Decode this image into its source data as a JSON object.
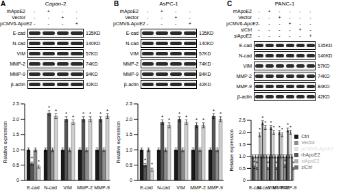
{
  "chart_data": [
    {
      "type": "bar",
      "y_label": "Relative expression",
      "categories": [
        "E-cad",
        "N-cad",
        "VIM",
        "MMP-2",
        "MMP-9"
      ],
      "ylim": [
        0,
        2.5
      ],
      "yticks": [
        0,
        0.5,
        {
          "value": 1,
          "label": "1.0"
        },
        1.5,
        {
          "value": 2,
          "label": "2.0"
        },
        2.5
      ],
      "series": [
        {
          "name": "Ctrl",
          "color": "#1a1a1a",
          "values": [
            1.0,
            1.0,
            1.0,
            1.0,
            1.0
          ],
          "errors": [
            0.06,
            0.06,
            0.06,
            0.06,
            0.06
          ]
        },
        {
          "name": "rhApoE2",
          "color": "#555555",
          "values": [
            0.55,
            2.2,
            2.0,
            2.0,
            2.0
          ],
          "errors": [
            0.05,
            0.08,
            0.08,
            0.08,
            0.08
          ]
        },
        {
          "name": "Vector",
          "color": "#8c8c8c",
          "values": [
            1.0,
            1.0,
            1.0,
            1.0,
            1.0
          ],
          "errors": [
            0.06,
            0.06,
            0.06,
            0.06,
            0.06
          ]
        },
        {
          "name": "pCMV6-ApoE2",
          "color": "#cfcfcf",
          "values": [
            0.45,
            2.1,
            1.9,
            2.0,
            2.1
          ],
          "errors": [
            0.05,
            0.08,
            0.08,
            0.08,
            0.08
          ]
        }
      ],
      "annotations": [
        {
          "text": "*",
          "series": "rhApoE2"
        },
        {
          "text": "*",
          "series": "pCMV6-ApoE2"
        }
      ]
    },
    {
      "type": "bar",
      "y_label": "Relative expression",
      "categories": [
        "E-cad",
        "N-cad",
        "VIM",
        "MMP-2",
        "MMP-9"
      ],
      "ylim": [
        0,
        2.5
      ],
      "yticks": [
        0,
        0.5,
        {
          "value": 1,
          "label": "1.0"
        },
        1.5,
        {
          "value": 2,
          "label": "2.0"
        },
        2.5
      ],
      "series": [
        {
          "name": "Ctrl",
          "color": "#1a1a1a",
          "values": [
            1.0,
            1.0,
            1.0,
            1.0,
            1.0
          ],
          "errors": [
            0.06,
            0.06,
            0.06,
            0.06,
            0.06
          ]
        },
        {
          "name": "rhApoE2",
          "color": "#555555",
          "values": [
            0.5,
            1.9,
            2.0,
            1.8,
            2.1
          ],
          "errors": [
            0.05,
            0.08,
            0.08,
            0.08,
            0.08
          ]
        },
        {
          "name": "Vector",
          "color": "#8c8c8c",
          "values": [
            1.0,
            1.0,
            1.0,
            1.0,
            1.0
          ],
          "errors": [
            0.06,
            0.06,
            0.06,
            0.06,
            0.06
          ]
        },
        {
          "name": "pCMV6-ApoE2",
          "color": "#cfcfcf",
          "values": [
            0.35,
            1.8,
            1.9,
            1.8,
            2.0
          ],
          "errors": [
            0.05,
            0.08,
            0.08,
            0.08,
            0.08
          ]
        }
      ],
      "annotations": [
        {
          "text": "*",
          "series": "rhApoE2"
        },
        {
          "text": "*",
          "series": "pCMV6-ApoE2"
        }
      ]
    },
    {
      "type": "bar",
      "y_label": "Relative expression",
      "categories": [
        "E-cad",
        "N-cad",
        "VIM",
        "MMP-2",
        "MMP-9"
      ],
      "ylim": [
        0,
        2.5
      ],
      "yticks": [
        0,
        0.5,
        {
          "value": 1,
          "label": "1.0"
        },
        1.5,
        {
          "value": 2,
          "label": "2.0"
        },
        2.5
      ],
      "legend": "right",
      "series": [
        {
          "name": "Ctrl",
          "color": "#1a1a1a",
          "values": [
            1.0,
            1.0,
            1.0,
            1.0,
            1.0
          ],
          "errors": [
            0.06,
            0.06,
            0.06,
            0.06,
            0.06
          ]
        },
        {
          "name": "rhApoE2",
          "color": "#555555",
          "values": [
            0.55,
            2.4,
            2.2,
            2.0,
            2.1
          ],
          "errors": [
            0.05,
            0.08,
            0.08,
            0.08,
            0.08
          ]
        },
        {
          "name": "Vector",
          "color": "#8c8c8c",
          "values": [
            1.0,
            1.0,
            1.0,
            1.0,
            1.0
          ],
          "errors": [
            0.06,
            0.06,
            0.06,
            0.06,
            0.06
          ]
        },
        {
          "name": "pCMV6-ApoE2",
          "color": "#e0e0e0",
          "values": [
            0.5,
            2.2,
            2.0,
            1.9,
            2.0
          ],
          "errors": [
            0.05,
            0.08,
            0.08,
            0.08,
            0.08
          ]
        },
        {
          "name": "siCtrl",
          "color": "#6e6e6e",
          "values": [
            1.0,
            1.0,
            1.0,
            1.0,
            1.0
          ],
          "errors": [
            0.06,
            0.06,
            0.06,
            0.06,
            0.06
          ]
        },
        {
          "name": "siApoE2",
          "color": "#b0b0b0",
          "values": [
            1.9,
            0.5,
            0.5,
            0.6,
            0.5
          ],
          "errors": [
            0.08,
            0.05,
            0.05,
            0.05,
            0.05
          ]
        }
      ],
      "annotations": [
        {
          "text": "*",
          "series": "rhApoE2"
        },
        {
          "text": "*",
          "series": "pCMV6-ApoE2"
        },
        {
          "text": "*",
          "series": "siApoE2"
        }
      ]
    }
  ],
  "blots": [
    {
      "panel": "A",
      "cell_line": "Capan-2",
      "treatments": [
        {
          "name": "rhApoE2",
          "lanes": [
            "-",
            "+",
            "-",
            "-"
          ]
        },
        {
          "name": "Vector",
          "lanes": [
            "-",
            "-",
            "+",
            "-"
          ]
        },
        {
          "name": "pCMV6-ApoE2",
          "lanes": [
            "-",
            "-",
            "-",
            "+"
          ]
        }
      ],
      "proteins": [
        {
          "name": "E-cad",
          "size": "135KD"
        },
        {
          "name": "N-cad",
          "size": "140KD"
        },
        {
          "name": "VIM",
          "size": "57KD"
        },
        {
          "name": "MMP-2",
          "size": "74KD"
        },
        {
          "name": "MMP-9",
          "size": "84KD"
        },
        {
          "name": "β-actin",
          "size": "42KD"
        }
      ]
    },
    {
      "panel": "B",
      "cell_line": "AsPC-1",
      "treatments": [
        {
          "name": "rhApoE2",
          "lanes": [
            "-",
            "+",
            "-",
            "-"
          ]
        },
        {
          "name": "Vector",
          "lanes": [
            "-",
            "-",
            "+",
            "-"
          ]
        },
        {
          "name": "pCMV6-ApoE2",
          "lanes": [
            "-",
            "-",
            "-",
            "+"
          ]
        }
      ],
      "proteins": [
        {
          "name": "E-cad",
          "size": "135KD"
        },
        {
          "name": "N-cad",
          "size": "140KD"
        },
        {
          "name": "VIM",
          "size": "57KD"
        },
        {
          "name": "MMP-2",
          "size": "74KD"
        },
        {
          "name": "MMP-9",
          "size": "84KD"
        },
        {
          "name": "β-actin",
          "size": "42KD"
        }
      ]
    },
    {
      "panel": "C",
      "cell_line": "PANC-1",
      "treatments": [
        {
          "name": "rhApoE2",
          "lanes": [
            "-",
            "+",
            "-",
            "-",
            "-",
            "-"
          ]
        },
        {
          "name": "Vector",
          "lanes": [
            "-",
            "-",
            "+",
            "-",
            "-",
            "-"
          ]
        },
        {
          "name": "pCMV6-ApoE2",
          "lanes": [
            "-",
            "-",
            "-",
            "+",
            "-",
            "-"
          ]
        },
        {
          "name": "siCtrl",
          "lanes": [
            "-",
            "-",
            "-",
            "-",
            "+",
            "-"
          ]
        },
        {
          "name": "siApoE2",
          "lanes": [
            "-",
            "-",
            "-",
            "-",
            "-",
            "+"
          ]
        }
      ],
      "proteins": [
        {
          "name": "E-cad",
          "size": "135KD"
        },
        {
          "name": "N-cad",
          "size": "140KD"
        },
        {
          "name": "VIM",
          "size": "57KD"
        },
        {
          "name": "MMP-2",
          "size": "74KD"
        },
        {
          "name": "MMP-9",
          "size": "84KD"
        },
        {
          "name": "β-actin",
          "size": "42KD"
        }
      ]
    }
  ]
}
